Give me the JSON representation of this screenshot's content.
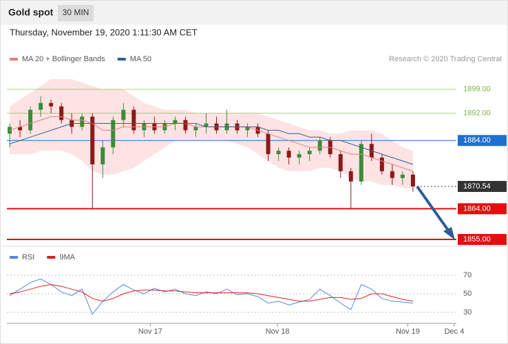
{
  "header": {
    "title": "Gold spot",
    "interval": "30 MIN",
    "timestamp": "Thursday, November 19, 2020 1:11:30 AM CET"
  },
  "chart_data": [
    {
      "type": "candlestick",
      "watermark": "Research © 2020 Trading Central",
      "xlim": [
        -0.27,
        43.2
      ],
      "ylim": [
        1853.6,
        1903
      ],
      "up_color": "#3c8c3c",
      "down_color": "#8b1a1a",
      "open": [
        1886,
        1888,
        1887,
        1893,
        1895,
        1894,
        1890,
        1888,
        1891,
        1877,
        1882,
        1890,
        1893,
        1887,
        1889,
        1887,
        1889,
        1890,
        1887,
        1888,
        1889,
        1887,
        1889,
        1887,
        1888,
        1886,
        1880,
        1881,
        1879,
        1880,
        1881,
        1884,
        1880,
        1875,
        1872,
        1883,
        1879,
        1875,
        1873,
        1874
      ],
      "high": [
        1889,
        1890,
        1894,
        1897,
        1896,
        1895,
        1892,
        1892,
        1892,
        1884,
        1891,
        1895,
        1894,
        1890,
        1891,
        1890,
        1891,
        1891,
        1889,
        1892,
        1891,
        1893,
        1890,
        1889,
        1889,
        1887,
        1882,
        1882,
        1881,
        1882,
        1885,
        1885,
        1881,
        1876,
        1884,
        1886,
        1880,
        1877,
        1875,
        1875
      ],
      "low": [
        1882,
        1885,
        1886,
        1891,
        1892,
        1889,
        1886,
        1887,
        1864,
        1873,
        1880,
        1888,
        1886,
        1885,
        1886,
        1886,
        1887,
        1886,
        1885,
        1886,
        1886,
        1886,
        1886,
        1885,
        1885,
        1878,
        1878,
        1877,
        1877,
        1878,
        1880,
        1879,
        1873,
        1864,
        1871,
        1878,
        1874,
        1871,
        1871,
        1869
      ],
      "close": [
        1888,
        1887,
        1893,
        1895,
        1894,
        1890,
        1888,
        1891,
        1877,
        1882,
        1890,
        1893,
        1887,
        1889,
        1887,
        1889,
        1890,
        1887,
        1888,
        1889,
        1887,
        1889,
        1887,
        1888,
        1886,
        1880,
        1881,
        1879,
        1880,
        1881,
        1884,
        1880,
        1875,
        1872,
        1883,
        1879,
        1875,
        1873,
        1874,
        1870.54
      ],
      "series": [
        {
          "name": "MA 20 + Bollinger Bands",
          "color": "#e87f7f",
          "band_color": "#fde3e3",
          "values": [
            1887,
            1888,
            1889,
            1890,
            1891,
            1891,
            1890,
            1890,
            1889,
            1887,
            1887,
            1888,
            1888,
            1888,
            1888,
            1888,
            1889,
            1889,
            1888,
            1888,
            1888,
            1888,
            1888,
            1888,
            1887,
            1886,
            1885,
            1884,
            1883,
            1882,
            1882,
            1882,
            1881,
            1880,
            1880,
            1879,
            1878,
            1877,
            1876,
            1875
          ],
          "band_upper": [
            1894,
            1896,
            1898,
            1900,
            1902,
            1902,
            1902,
            1901,
            1900,
            1899,
            1899,
            1899,
            1897,
            1895,
            1894,
            1893,
            1893,
            1893,
            1892,
            1892,
            1892,
            1892,
            1892,
            1892,
            1892,
            1891,
            1890,
            1889,
            1888,
            1887,
            1887,
            1886,
            1886,
            1887,
            1887,
            1887,
            1886,
            1884,
            1882,
            1881
          ],
          "band_lower": [
            1880,
            1880,
            1880,
            1881,
            1881,
            1881,
            1880,
            1878,
            1875,
            1874,
            1874,
            1875,
            1876,
            1878,
            1880,
            1882,
            1884,
            1884,
            1884,
            1884,
            1884,
            1884,
            1883,
            1882,
            1880,
            1878,
            1876,
            1875,
            1875,
            1875,
            1876,
            1876,
            1875,
            1873,
            1872,
            1872,
            1871,
            1871,
            1870,
            1870
          ]
        },
        {
          "name": "MA 50",
          "color": "#2f5b9a",
          "values": [
            1883,
            1884,
            1885,
            1886,
            1887,
            1888,
            1889,
            1889,
            1889,
            1889,
            1889,
            1889,
            1889,
            1889,
            1889,
            1889,
            1889,
            1889,
            1889,
            1888,
            1888,
            1888,
            1888,
            1888,
            1888,
            1887,
            1887,
            1886,
            1886,
            1885,
            1885,
            1884,
            1884,
            1883,
            1882,
            1881,
            1880,
            1879,
            1878,
            1877
          ]
        }
      ],
      "levels": [
        {
          "value": 1899,
          "label": "1899.00",
          "color": "#7cb342",
          "box": false,
          "width": 1,
          "dashed": false
        },
        {
          "value": 1892,
          "label": "1892.00",
          "color": "#7cb342",
          "box": false,
          "width": 1,
          "dashed": false
        },
        {
          "value": 1884,
          "label": "1884.00",
          "color": "#1f6fd1",
          "box": true,
          "width": 1,
          "dashed": false
        },
        {
          "value": 1870.54,
          "label": "1870.54",
          "color": "#333333",
          "box": true,
          "width": 1,
          "dashed": true
        },
        {
          "value": 1864,
          "label": "1864.00",
          "color": "#e01010",
          "box": true,
          "width": 2,
          "dashed": false
        },
        {
          "value": 1855,
          "label": "1855.00",
          "color": "#e01010",
          "box": true,
          "width": 2,
          "dashed": false
        }
      ]
    },
    {
      "type": "line",
      "xlim": [
        -0.27,
        43.2
      ],
      "ylim": [
        20,
        81
      ],
      "yticks": [
        30,
        50,
        70
      ],
      "xticks": [
        {
          "value": 13.6,
          "label": "Nov 17"
        },
        {
          "value": 25.9,
          "label": "Nov 18"
        },
        {
          "value": 38.5,
          "label": "Nov 19"
        },
        {
          "value": 43,
          "label": "Dec 4"
        }
      ],
      "series": [
        {
          "name": "RSI",
          "color": "#5b84d6",
          "values": [
            48,
            55,
            62,
            66,
            60,
            52,
            48,
            55,
            28,
            42,
            52,
            60,
            54,
            50,
            56,
            52,
            55,
            50,
            48,
            52,
            50,
            55,
            49,
            50,
            47,
            40,
            42,
            38,
            41,
            44,
            55,
            48,
            40,
            33,
            60,
            55,
            45,
            42,
            41,
            40
          ]
        },
        {
          "name": "9MA",
          "color": "#d62020",
          "values": [
            50,
            52,
            55,
            58,
            60,
            58,
            55,
            52,
            45,
            42,
            45,
            50,
            53,
            54,
            54,
            53,
            53,
            52,
            51,
            51,
            51,
            51,
            51,
            51,
            50,
            48,
            46,
            44,
            42,
            42,
            44,
            46,
            46,
            44,
            45,
            50,
            50,
            47,
            44,
            42
          ]
        }
      ]
    }
  ]
}
